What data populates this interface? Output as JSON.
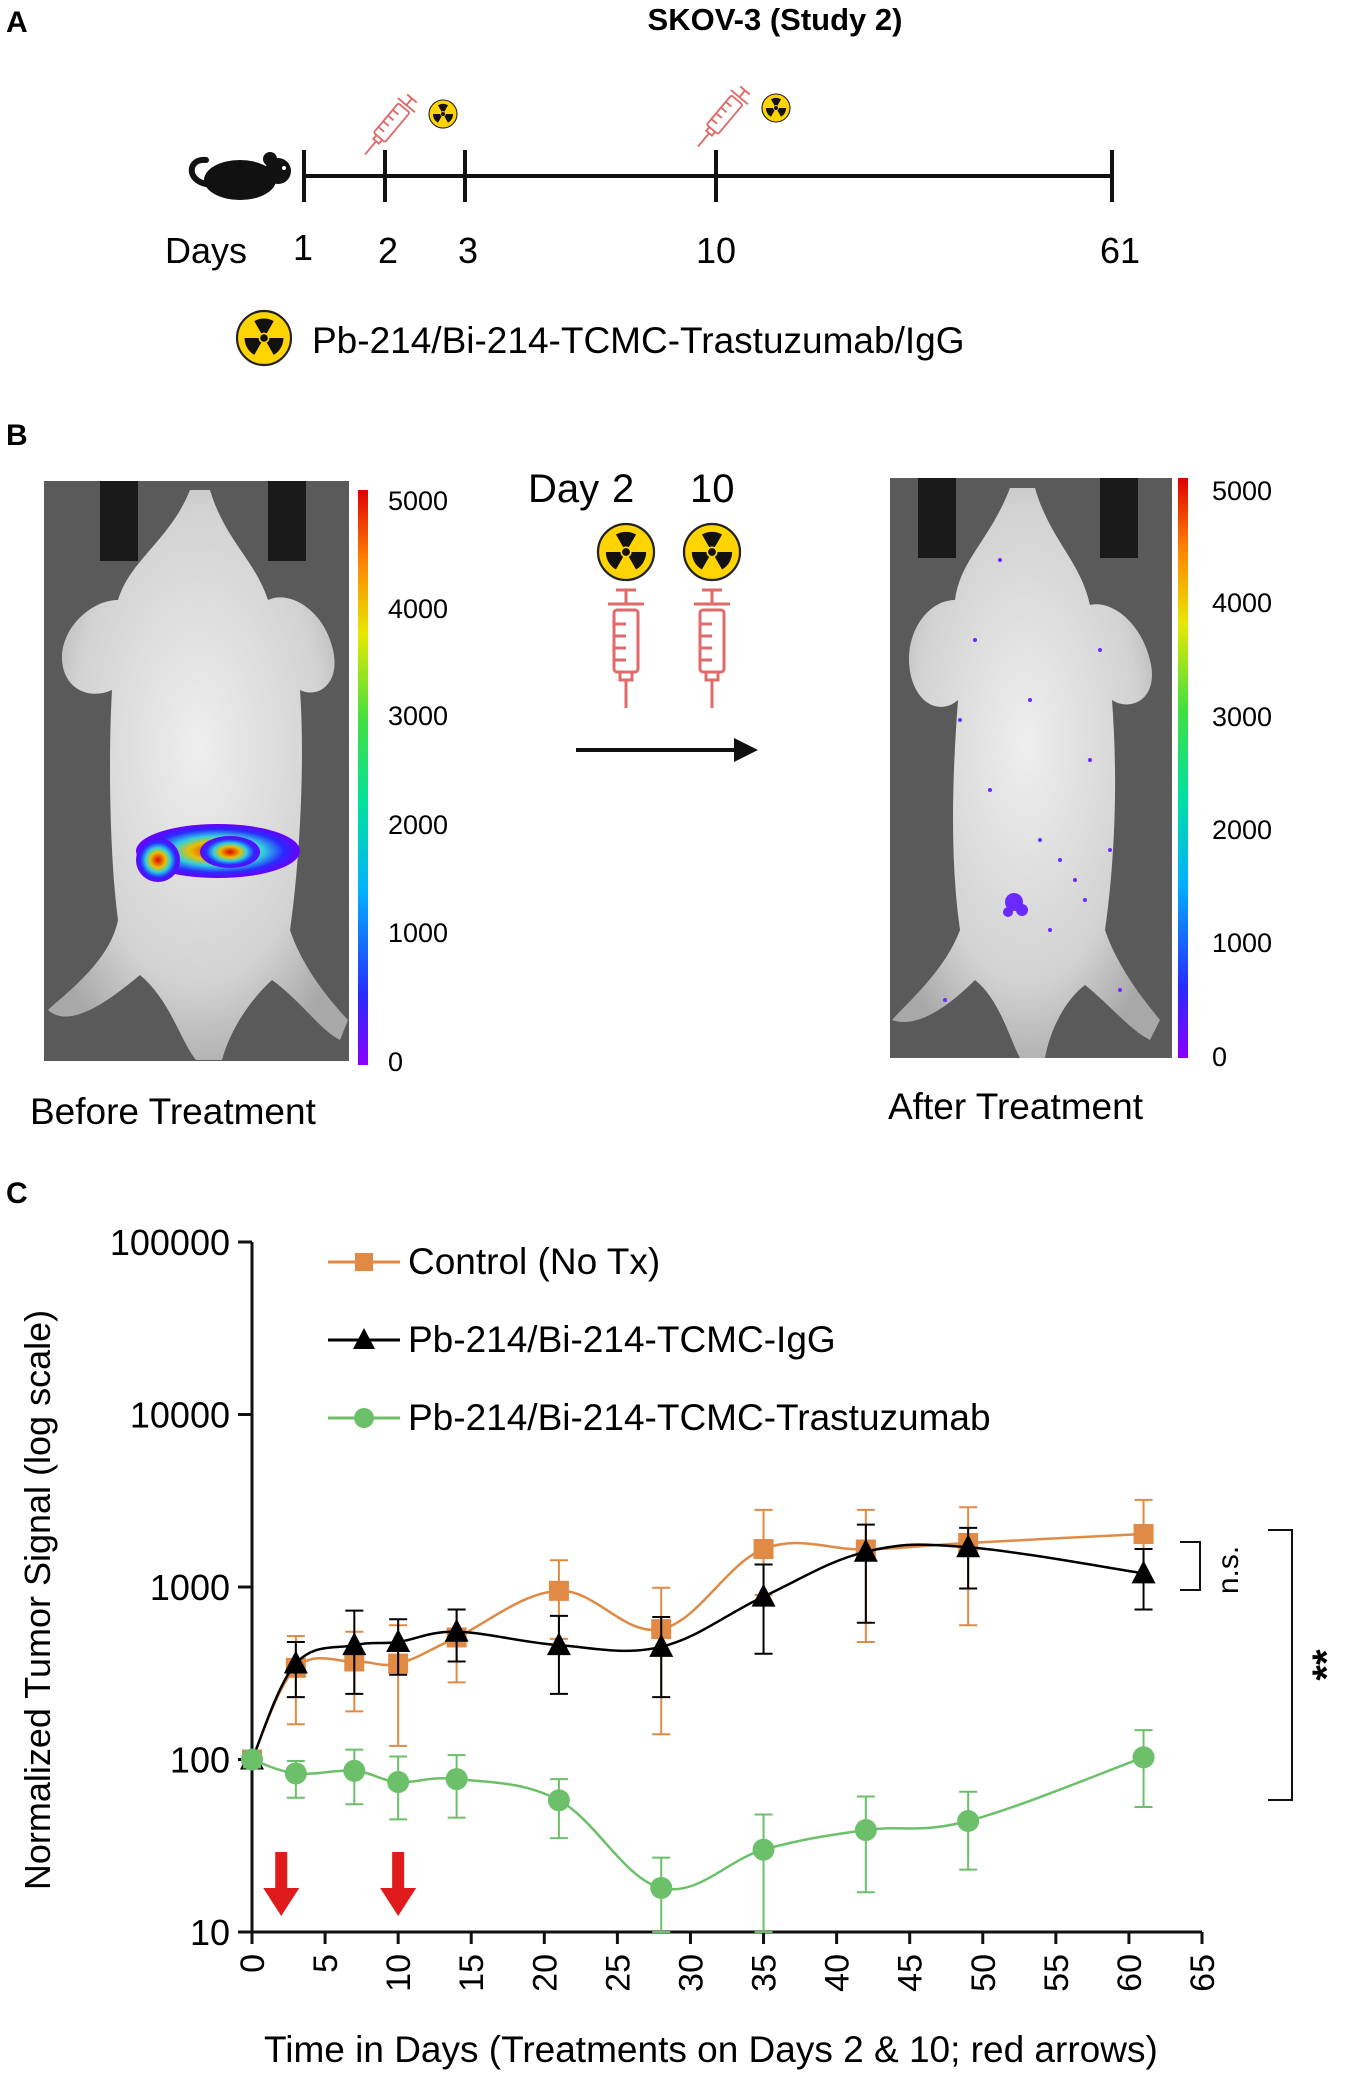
{
  "colors": {
    "control": "#e08a45",
    "igg": "#000000",
    "trastuzumab": "#6cc06a",
    "syringe": "#e06a6a",
    "arrow_red": "#e01b1b",
    "radiation_yellow": "#ffd400"
  },
  "panel_a": {
    "label": "A",
    "title": "SKOV-3 (Study 2)",
    "days_label": "Days",
    "days": [
      "1",
      "2",
      "3",
      "10",
      "61"
    ],
    "injection_days": [
      "2",
      "10"
    ],
    "legend_text": "Pb-214/Bi-214-TCMC-Trastuzumab/IgG",
    "mouse_icon": "mouse-icon",
    "radiation_icon": "radiation-icon",
    "syringe_icon": "syringe-icon"
  },
  "panel_b": {
    "label": "B",
    "before_caption": "Before Treatment",
    "after_caption": "After Treatment",
    "scale_labels": [
      "5000",
      "4000",
      "3000",
      "2000",
      "1000",
      "0"
    ],
    "day_label": "Day",
    "injection_days": [
      "2",
      "10"
    ]
  },
  "chart_data": {
    "label": "C",
    "type": "line",
    "y_scale": "log",
    "ylim": [
      10,
      100000
    ],
    "xlim": [
      0,
      65
    ],
    "xlabel": "Time in Days (Treatments on Days 2 & 10; red arrows)",
    "ylabel": "Normalized Tumor Signal (log scale)",
    "x_ticks": [
      "0",
      "5",
      "10",
      "15",
      "20",
      "25",
      "30",
      "35",
      "40",
      "45",
      "50",
      "55",
      "60",
      "65"
    ],
    "y_ticks": [
      "10",
      "100",
      "1000",
      "10000",
      "100000"
    ],
    "treatment_arrow_days": [
      2,
      10
    ],
    "series": [
      {
        "name": "Control (No Tx)",
        "marker": "square",
        "x": [
          0,
          3,
          7,
          10,
          14,
          21,
          28,
          35,
          42,
          49,
          61
        ],
        "y": [
          100,
          340,
          370,
          360,
          510,
          950,
          570,
          1660,
          1650,
          1800,
          2030
        ],
        "err_low": [
          90,
          160,
          190,
          120,
          280,
          500,
          140,
          900,
          480,
          600,
          1100
        ],
        "err_high": [
          110,
          520,
          550,
          600,
          740,
          1430,
          990,
          2800,
          2800,
          2900,
          3200
        ]
      },
      {
        "name": "Pb-214/Bi-214-TCMC-IgG",
        "marker": "triangle",
        "x": [
          0,
          3,
          7,
          10,
          14,
          21,
          28,
          35,
          42,
          49,
          61
        ],
        "y": [
          100,
          360,
          460,
          480,
          550,
          460,
          450,
          880,
          1600,
          1700,
          1200
        ],
        "err_low": [
          90,
          230,
          240,
          310,
          370,
          240,
          230,
          410,
          620,
          980,
          740
        ],
        "err_high": [
          110,
          480,
          730,
          650,
          740,
          680,
          670,
          1350,
          2300,
          2200,
          1660
        ]
      },
      {
        "name": "Pb-214/Bi-214-TCMC-Trastuzumab",
        "marker": "circle",
        "x": [
          0,
          3,
          7,
          10,
          14,
          21,
          28,
          35,
          42,
          49,
          61
        ],
        "y": [
          100,
          83,
          86,
          74,
          77,
          58,
          18,
          30,
          39,
          44,
          103
        ],
        "err_low": [
          90,
          60,
          55,
          45,
          46,
          35,
          10,
          10,
          17,
          23,
          53
        ],
        "err_high": [
          110,
          98,
          114,
          104,
          106,
          77,
          27,
          48,
          61,
          65,
          148
        ]
      }
    ],
    "significance": [
      {
        "label": "n.s.",
        "between": [
          "Control (No Tx)",
          "Pb-214/Bi-214-TCMC-IgG"
        ]
      },
      {
        "label": "**",
        "between": [
          "Control (No Tx)",
          "Pb-214/Bi-214-TCMC-Trastuzumab"
        ]
      }
    ]
  }
}
